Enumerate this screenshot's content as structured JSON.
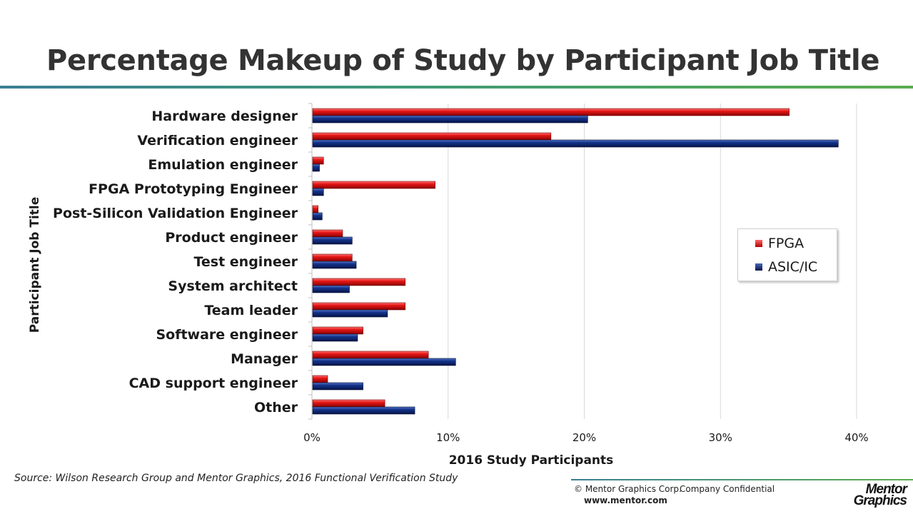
{
  "slide": {
    "title": "Percentage Makeup of Study by Participant Job Title",
    "source": "Source:  Wilson Research Group and Mentor Graphics, 2016 Functional Verification Study",
    "copyright": "© Mentor Graphics Corp.",
    "confidential": "Company Confidential",
    "website": "www.mentor.com",
    "logo_line1": "Mentor",
    "logo_line2": "Graphics"
  },
  "colors": {
    "fpga": "#e01010",
    "asic": "#0d2a78",
    "grid": "#d9d9d9",
    "accent_rule": "#3f9a77"
  },
  "legend": {
    "position": "right",
    "items": [
      {
        "label": "FPGA",
        "color": "#e01010"
      },
      {
        "label": "ASIC/IC",
        "color": "#0d2a78"
      }
    ]
  },
  "chart_data": {
    "type": "bar",
    "orientation": "horizontal",
    "xlabel": "2016 Study Participants",
    "ylabel": "Participant Job Title",
    "xlim": [
      0,
      40
    ],
    "xticks": [
      "0%",
      "10%",
      "20%",
      "30%",
      "40%"
    ],
    "xtick_values": [
      0,
      10,
      20,
      30,
      40
    ],
    "grid": true,
    "categories": [
      "Hardware designer",
      "Verification engineer",
      "Emulation engineer",
      "FPGA Prototyping Engineer",
      "Post-Silicon Validation Engineer",
      "Product engineer",
      "Test engineer",
      "System architect",
      "Team leader",
      "Software engineer",
      "Manager",
      "CAD support engineer",
      "Other"
    ],
    "series": [
      {
        "name": "FPGA",
        "values": [
          35.0,
          17.5,
          0.8,
          9.0,
          0.4,
          2.2,
          2.9,
          6.8,
          6.8,
          3.7,
          8.5,
          1.1,
          5.3
        ]
      },
      {
        "name": "ASIC/IC",
        "values": [
          20.2,
          38.6,
          0.5,
          0.8,
          0.7,
          2.9,
          3.2,
          2.7,
          5.5,
          3.3,
          10.5,
          3.7,
          7.5
        ]
      }
    ]
  }
}
